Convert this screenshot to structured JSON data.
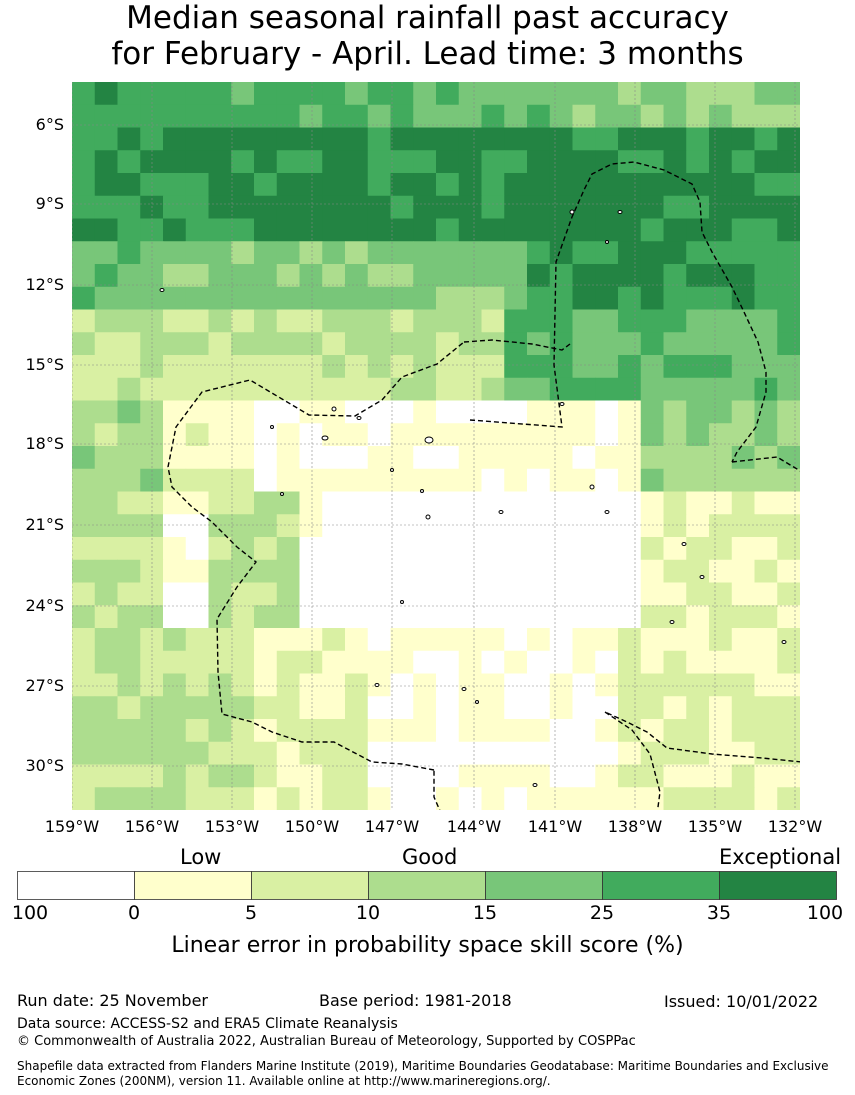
{
  "title": {
    "line1": "Median seasonal rainfall past accuracy",
    "line2": "for February - April. Lead time: 3 months"
  },
  "map": {
    "lat_labels": [
      "6°S",
      "9°S",
      "12°S",
      "15°S",
      "18°S",
      "21°S",
      "24°S",
      "27°S",
      "30°S"
    ],
    "lon_labels": [
      "159°W",
      "156°W",
      "153°W",
      "150°W",
      "147°W",
      "144°W",
      "141°W",
      "138°W",
      "135°W",
      "132°W"
    ]
  },
  "legend": {
    "categories": [
      "Low",
      "Good",
      "Exceptional"
    ],
    "tick_labels": [
      "100",
      "0",
      "5",
      "10",
      "15",
      "25",
      "35",
      "100"
    ],
    "colors": [
      "#ffffff",
      "#ffffcc",
      "#d9f0a3",
      "#addd8e",
      "#78c679",
      "#41ab5d",
      "#238443"
    ],
    "label": "Linear error in probability space skill score (%)"
  },
  "footer": {
    "run_date": "Run date: 25 November",
    "base_period": "Base period: 1981-2018",
    "issued": "Issued: 10/01/2022",
    "data_source": "Data source: ACCESS-S2 and ERA5 Climate Reanalysis",
    "copyright": "© Commonwealth of Australia 2022, Australian Bureau of Meteorology, Supported by COSPPac",
    "shapefile_line1": "Shapefile data extracted from Flanders Marine Institute (2019), Maritime Boundaries Geodatabase: Maritime Boundaries and Exclusive",
    "shapefile_line2": "Economic Zones (200NM), version 11. Available online at http://www.marineregions.org/."
  }
}
